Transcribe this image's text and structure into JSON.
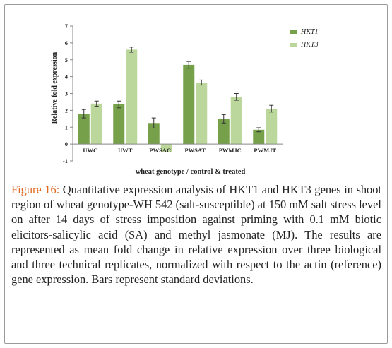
{
  "chart_data": {
    "type": "bar",
    "title": "",
    "xlabel": "wheat genotype / control & treated",
    "ylabel": "Relative fold expression",
    "ylim": [
      -1,
      7
    ],
    "yticks": [
      -1,
      0,
      1,
      2,
      3,
      4,
      5,
      6,
      7
    ],
    "grid": false,
    "legend_position": "top-right",
    "categories": [
      "UWC",
      "UWT",
      "PWSAC",
      "PWSAT",
      "PWMJC",
      "PWMJT"
    ],
    "series": [
      {
        "name": "HKT1",
        "color": "#77a04a",
        "values": [
          1.8,
          2.35,
          1.25,
          4.7,
          1.5,
          0.85
        ],
        "errors": [
          0.25,
          0.2,
          0.3,
          0.2,
          0.25,
          0.12
        ]
      },
      {
        "name": "HKT3",
        "color": "#bcd79b",
        "values": [
          2.4,
          5.6,
          -0.45,
          3.65,
          2.8,
          2.1
        ],
        "errors": [
          0.15,
          0.15,
          0.0,
          0.15,
          0.2,
          0.2
        ]
      }
    ]
  },
  "caption": {
    "label": "Figure 16:",
    "text": "Quantitative expression analysis of HKT1 and HKT3 genes in shoot region of wheat genotype-WH 542 (salt-susceptible) at 150 mM salt stress level on after 14 days of stress imposition against priming with 0.1 mM biotic elicitors-salicylic acid (SA) and methyl jasmonate (MJ). The results are represented as mean fold change in relative expression over three biological and three technical replicates, normalized with respect to the actin (reference) gene expression. Bars represent standard deviations."
  }
}
